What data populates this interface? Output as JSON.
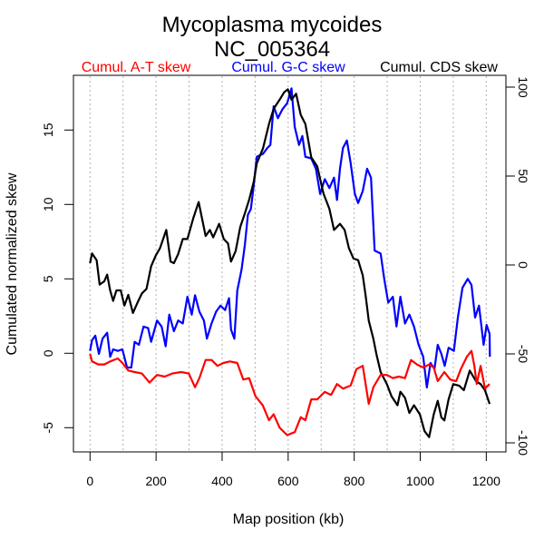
{
  "chart_data": {
    "type": "line",
    "title": "Mycoplasma mycoides",
    "subtitle": "NC_005364",
    "xlabel": "Map position (kb)",
    "ylabel": "Cumulated normalized skew",
    "xlim": [
      -50,
      1260
    ],
    "ylim": [
      -6.6,
      18.7
    ],
    "y2lim": [
      -103,
      111
    ],
    "x_ticks": [
      0,
      200,
      400,
      600,
      800,
      1000,
      1200
    ],
    "x_grid": [
      0,
      100,
      200,
      300,
      400,
      500,
      600,
      700,
      800,
      900,
      1000,
      1100,
      1200
    ],
    "y_ticks": [
      -5,
      0,
      5,
      10,
      15
    ],
    "y2_ticks": [
      -100,
      -50,
      0,
      50,
      100
    ],
    "grid": "vertical dotted every 100 kb",
    "legend_placement": "top",
    "series": [
      {
        "name": "Cumul. A-T skew",
        "color": "#ff0000",
        "axis": "left",
        "points": [
          [
            0,
            -0.04
          ],
          [
            6,
            -0.55
          ],
          [
            25,
            -0.75
          ],
          [
            43,
            -0.75
          ],
          [
            61,
            -0.55
          ],
          [
            84,
            -0.35
          ],
          [
            98,
            -0.65
          ],
          [
            116,
            -1.16
          ],
          [
            135,
            -1.26
          ],
          [
            157,
            -1.36
          ],
          [
            180,
            -1.97
          ],
          [
            203,
            -1.46
          ],
          [
            226,
            -1.57
          ],
          [
            249,
            -1.36
          ],
          [
            276,
            -1.26
          ],
          [
            299,
            -1.36
          ],
          [
            318,
            -2.28
          ],
          [
            331,
            -1.67
          ],
          [
            350,
            -0.45
          ],
          [
            368,
            -0.45
          ],
          [
            386,
            -0.85
          ],
          [
            404,
            -0.65
          ],
          [
            423,
            -0.55
          ],
          [
            446,
            -0.65
          ],
          [
            464,
            -1.77
          ],
          [
            482,
            -1.67
          ],
          [
            501,
            -2.89
          ],
          [
            523,
            -3.5
          ],
          [
            542,
            -4.5
          ],
          [
            556,
            -4.1
          ],
          [
            574,
            -5.0
          ],
          [
            597,
            -5.5
          ],
          [
            620,
            -5.3
          ],
          [
            638,
            -4.3
          ],
          [
            652,
            -4.5
          ],
          [
            670,
            -3.1
          ],
          [
            688,
            -3.1
          ],
          [
            711,
            -2.6
          ],
          [
            730,
            -2.8
          ],
          [
            748,
            -2.07
          ],
          [
            766,
            -2.38
          ],
          [
            789,
            -2.17
          ],
          [
            807,
            -1.06
          ],
          [
            826,
            -0.85
          ],
          [
            844,
            -3.4
          ],
          [
            858,
            -2.28
          ],
          [
            880,
            -1.46
          ],
          [
            899,
            -1.46
          ],
          [
            917,
            -1.67
          ],
          [
            935,
            -1.57
          ],
          [
            954,
            -1.67
          ],
          [
            972,
            -0.45
          ],
          [
            990,
            -0.75
          ],
          [
            1009,
            -0.96
          ],
          [
            1027,
            -0.75
          ],
          [
            1041,
            -0.96
          ],
          [
            1053,
            -1.87
          ],
          [
            1073,
            -1.26
          ],
          [
            1091,
            -1.77
          ],
          [
            1109,
            -1.87
          ],
          [
            1123,
            -1.06
          ],
          [
            1141,
            -0.24
          ],
          [
            1155,
            0.16
          ],
          [
            1164,
            -0.85
          ],
          [
            1171,
            -2.07
          ],
          [
            1183,
            -0.85
          ],
          [
            1196,
            -2.38
          ],
          [
            1210,
            -2.07
          ]
        ]
      },
      {
        "name": "Cumul. G-C skew",
        "color": "#0000ff",
        "axis": "left",
        "points": [
          [
            0,
            0.16
          ],
          [
            6,
            0.87
          ],
          [
            16,
            1.18
          ],
          [
            27,
            -0.04
          ],
          [
            38,
            0.98
          ],
          [
            52,
            1.38
          ],
          [
            61,
            -0.24
          ],
          [
            70,
            0.26
          ],
          [
            84,
            0.16
          ],
          [
            98,
            0.26
          ],
          [
            112,
            -0.96
          ],
          [
            125,
            -0.96
          ],
          [
            135,
            0.77
          ],
          [
            148,
            0.57
          ],
          [
            162,
            1.79
          ],
          [
            176,
            1.69
          ],
          [
            185,
            0.77
          ],
          [
            203,
            2.2
          ],
          [
            217,
            1.79
          ],
          [
            229,
            0.47
          ],
          [
            240,
            2.6
          ],
          [
            254,
            1.48
          ],
          [
            267,
            2.2
          ],
          [
            281,
            2.0
          ],
          [
            295,
            3.8
          ],
          [
            308,
            2.6
          ],
          [
            318,
            3.9
          ],
          [
            331,
            2.8
          ],
          [
            345,
            2.2
          ],
          [
            354,
            0.98
          ],
          [
            368,
            2.0
          ],
          [
            382,
            2.8
          ],
          [
            395,
            3.2
          ],
          [
            409,
            2.9
          ],
          [
            421,
            3.7
          ],
          [
            427,
            1.6
          ],
          [
            437,
            0.98
          ],
          [
            446,
            4.2
          ],
          [
            459,
            5.65
          ],
          [
            469,
            7.3
          ],
          [
            478,
            9.3
          ],
          [
            487,
            9.7
          ],
          [
            496,
            11.3
          ],
          [
            505,
            13.2
          ],
          [
            524,
            13.4
          ],
          [
            537,
            13.8
          ],
          [
            546,
            14.0
          ],
          [
            556,
            16.6
          ],
          [
            569,
            15.8
          ],
          [
            583,
            16.4
          ],
          [
            597,
            16.8
          ],
          [
            610,
            17.8
          ],
          [
            620,
            15.2
          ],
          [
            633,
            14.0
          ],
          [
            643,
            14.6
          ],
          [
            652,
            13.2
          ],
          [
            670,
            13.1
          ],
          [
            684,
            12.4
          ],
          [
            697,
            10.7
          ],
          [
            711,
            11.7
          ],
          [
            725,
            11.1
          ],
          [
            739,
            11.8
          ],
          [
            748,
            10.3
          ],
          [
            757,
            12.4
          ],
          [
            766,
            13.8
          ],
          [
            778,
            14.3
          ],
          [
            789,
            12.8
          ],
          [
            802,
            10.7
          ],
          [
            812,
            10.1
          ],
          [
            826,
            10.9
          ],
          [
            839,
            12.4
          ],
          [
            851,
            11.8
          ],
          [
            862,
            6.9
          ],
          [
            880,
            6.7
          ],
          [
            891,
            5.0
          ],
          [
            903,
            3.4
          ],
          [
            917,
            3.8
          ],
          [
            928,
            1.8
          ],
          [
            940,
            3.8
          ],
          [
            954,
            2.0
          ],
          [
            967,
            2.6
          ],
          [
            981,
            1.8
          ],
          [
            995,
            0.57
          ],
          [
            1009,
            -0.24
          ],
          [
            1020,
            -2.3
          ],
          [
            1031,
            -0.65
          ],
          [
            1043,
            -1.06
          ],
          [
            1053,
            0.57
          ],
          [
            1064,
            -0.04
          ],
          [
            1074,
            -0.85
          ],
          [
            1086,
            0.37
          ],
          [
            1102,
            0.16
          ],
          [
            1114,
            2.4
          ],
          [
            1128,
            4.4
          ],
          [
            1144,
            5.0
          ],
          [
            1155,
            4.6
          ],
          [
            1166,
            2.4
          ],
          [
            1178,
            3.2
          ],
          [
            1192,
            0.57
          ],
          [
            1201,
            1.9
          ],
          [
            1210,
            1.3
          ],
          [
            1211,
            -0.24
          ]
        ]
      },
      {
        "name": "Cumul. CDS skew",
        "color": "#000000",
        "axis": "right",
        "points": [
          [
            0,
            1.0
          ],
          [
            6,
            6.5
          ],
          [
            20,
            2.7
          ],
          [
            29,
            -11
          ],
          [
            43,
            -9.2
          ],
          [
            52,
            -5.4
          ],
          [
            61,
            -14.3
          ],
          [
            70,
            -20.2
          ],
          [
            80,
            -14.3
          ],
          [
            93,
            -14.3
          ],
          [
            104,
            -22.8
          ],
          [
            116,
            -16.8
          ],
          [
            130,
            -27
          ],
          [
            144,
            -21.1
          ],
          [
            157,
            -16
          ],
          [
            171,
            -13.4
          ],
          [
            185,
            -0.7
          ],
          [
            199,
            5.3
          ],
          [
            212,
            9.5
          ],
          [
            231,
            19.7
          ],
          [
            244,
            1.9
          ],
          [
            254,
            1.0
          ],
          [
            267,
            6.1
          ],
          [
            281,
            14.6
          ],
          [
            295,
            14.6
          ],
          [
            313,
            26.5
          ],
          [
            329,
            35.4
          ],
          [
            350,
            16.3
          ],
          [
            363,
            19.7
          ],
          [
            373,
            15.5
          ],
          [
            391,
            23.1
          ],
          [
            405,
            14.6
          ],
          [
            418,
            12.1
          ],
          [
            427,
            1.9
          ],
          [
            441,
            7.8
          ],
          [
            455,
            21.4
          ],
          [
            469,
            29.1
          ],
          [
            482,
            36.7
          ],
          [
            496,
            46.9
          ],
          [
            505,
            57.1
          ],
          [
            524,
            65.6
          ],
          [
            542,
            79.3
          ],
          [
            556,
            87.8
          ],
          [
            574,
            92.9
          ],
          [
            588,
            97.1
          ],
          [
            599,
            98.8
          ],
          [
            610,
            92.9
          ],
          [
            624,
            96.3
          ],
          [
            638,
            84.4
          ],
          [
            652,
            79.3
          ],
          [
            670,
            60.5
          ],
          [
            688,
            55.4
          ],
          [
            707,
            40.1
          ],
          [
            725,
            31.6
          ],
          [
            739,
            19.7
          ],
          [
            757,
            23.1
          ],
          [
            771,
            19.7
          ],
          [
            784,
            9.5
          ],
          [
            798,
            3.6
          ],
          [
            812,
            2.7
          ],
          [
            826,
            -5.8
          ],
          [
            835,
            -17.7
          ],
          [
            844,
            -31.3
          ],
          [
            858,
            -41.5
          ],
          [
            867,
            -50
          ],
          [
            880,
            -60.2
          ],
          [
            899,
            -67
          ],
          [
            913,
            -73.8
          ],
          [
            931,
            -78.9
          ],
          [
            940,
            -71.3
          ],
          [
            954,
            -74.7
          ],
          [
            967,
            -83.2
          ],
          [
            981,
            -78.9
          ],
          [
            999,
            -84
          ],
          [
            1013,
            -93.4
          ],
          [
            1027,
            -96.8
          ],
          [
            1041,
            -84
          ],
          [
            1053,
            -76.4
          ],
          [
            1064,
            -85.7
          ],
          [
            1073,
            -87.4
          ],
          [
            1086,
            -75.5
          ],
          [
            1100,
            -67
          ],
          [
            1118,
            -67.9
          ],
          [
            1132,
            -70.4
          ],
          [
            1150,
            -59.4
          ],
          [
            1169,
            -65.3
          ],
          [
            1183,
            -67
          ],
          [
            1196,
            -70.4
          ],
          [
            1210,
            -78.1
          ]
        ]
      }
    ]
  }
}
